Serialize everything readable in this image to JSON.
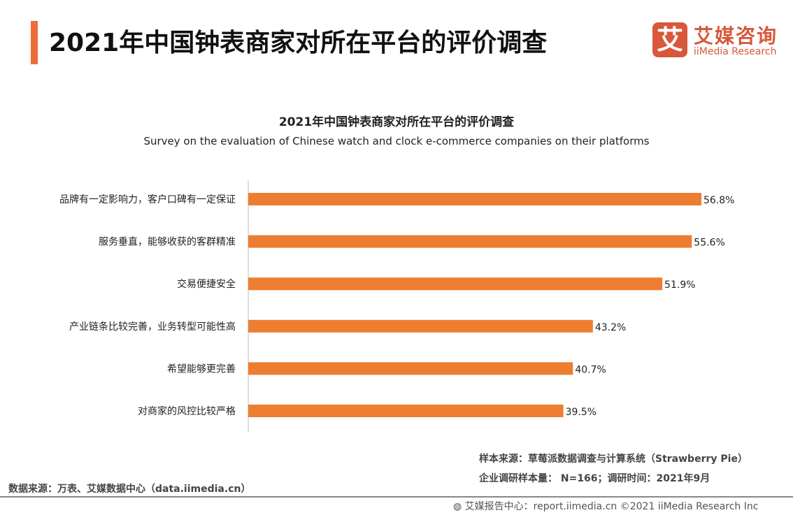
{
  "header": {
    "title": "2021年中国钟表商家对所在平台的评价调查",
    "logo_mark": "艾",
    "logo_cn": "艾媒咨询",
    "logo_en": "iiMedia Research"
  },
  "chart_data": {
    "type": "bar",
    "orientation": "horizontal",
    "title": "2021年中国钟表商家对所在平台的评价调查",
    "subtitle": "Survey on the evaluation of Chinese watch and clock e-commerce companies on their platforms",
    "categories": [
      "品牌有一定影响力，客户口碑有一定保证",
      "服务垂直，能够收获的客群精准",
      "交易便捷安全",
      "产业链条比较完善，业务转型可能性高",
      "希望能够更完善",
      "对商家的风控比较严格"
    ],
    "values": [
      56.8,
      55.6,
      51.9,
      43.2,
      40.7,
      39.5
    ],
    "labels": [
      "56.8%",
      "55.6%",
      "51.9%",
      "43.2%",
      "40.7%",
      "39.5%"
    ],
    "bar_color": "#ed7d31",
    "grid": false
  },
  "footer": {
    "sample_source": "样本来源：草莓派数据调查与计算系统（Strawberry Pie）",
    "sample_info": "企业调研样本量： N=166；调研时间：2021年9月",
    "data_source": "数据来源：万表、艾媒数据中心（data.iimedia.cn）",
    "copyright": "艾媒报告中心：report.iimedia.cn   ©2021  iiMedia Research  Inc"
  }
}
